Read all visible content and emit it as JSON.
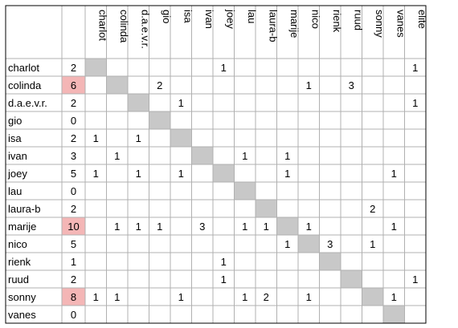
{
  "columns": [
    "charlot",
    "colinda",
    "d.a.e.v.r.",
    "gio",
    "isa",
    "ivan",
    "joey",
    "lau",
    "laura-b",
    "marije",
    "nico",
    "rienk",
    "ruud",
    "sonny",
    "vanes",
    "elite"
  ],
  "rows": [
    {
      "name": "charlot",
      "total": "2",
      "highlight": false,
      "cells": [
        "",
        "",
        "",
        "",
        "",
        "",
        "1",
        "",
        "",
        "",
        "",
        "",
        "",
        "",
        "",
        "1"
      ]
    },
    {
      "name": "colinda",
      "total": "6",
      "highlight": true,
      "cells": [
        "",
        "",
        "",
        "2",
        "",
        "",
        "",
        "",
        "",
        "",
        "1",
        "",
        "3",
        "",
        "",
        ""
      ]
    },
    {
      "name": "d.a.e.v.r.",
      "total": "2",
      "highlight": false,
      "cells": [
        "",
        "",
        "",
        "",
        "1",
        "",
        "",
        "",
        "",
        "",
        "",
        "",
        "",
        "",
        "",
        "1"
      ]
    },
    {
      "name": "gio",
      "total": "0",
      "highlight": false,
      "cells": [
        "",
        "",
        "",
        "",
        "",
        "",
        "",
        "",
        "",
        "",
        "",
        "",
        "",
        "",
        "",
        ""
      ]
    },
    {
      "name": "isa",
      "total": "2",
      "highlight": false,
      "cells": [
        "1",
        "",
        "1",
        "",
        "",
        "",
        "",
        "",
        "",
        "",
        "",
        "",
        "",
        "",
        "",
        ""
      ]
    },
    {
      "name": "ivan",
      "total": "3",
      "highlight": false,
      "cells": [
        "",
        "1",
        "",
        "",
        "",
        "",
        "",
        "1",
        "",
        "1",
        "",
        "",
        "",
        "",
        "",
        ""
      ]
    },
    {
      "name": "joey",
      "total": "5",
      "highlight": false,
      "cells": [
        "1",
        "",
        "1",
        "",
        "1",
        "",
        "",
        "",
        "",
        "1",
        "",
        "",
        "",
        "",
        "1",
        ""
      ]
    },
    {
      "name": "lau",
      "total": "0",
      "highlight": false,
      "cells": [
        "",
        "",
        "",
        "",
        "",
        "",
        "",
        "",
        "",
        "",
        "",
        "",
        "",
        "",
        "",
        ""
      ]
    },
    {
      "name": "laura-b",
      "total": "2",
      "highlight": false,
      "cells": [
        "",
        "",
        "",
        "",
        "",
        "",
        "",
        "",
        "",
        "",
        "",
        "",
        "",
        "2",
        "",
        ""
      ]
    },
    {
      "name": "marije",
      "total": "10",
      "highlight": true,
      "cells": [
        "",
        "1",
        "1",
        "1",
        "",
        "3",
        "",
        "1",
        "1",
        "",
        "1",
        "",
        "",
        "",
        "1",
        ""
      ]
    },
    {
      "name": "nico",
      "total": "5",
      "highlight": false,
      "cells": [
        "",
        "",
        "",
        "",
        "",
        "",
        "",
        "",
        "",
        "1",
        "",
        "3",
        "",
        "1",
        "",
        ""
      ]
    },
    {
      "name": "rienk",
      "total": "1",
      "highlight": false,
      "cells": [
        "",
        "",
        "",
        "",
        "",
        "",
        "1",
        "",
        "",
        "",
        "",
        "",
        "",
        "",
        "",
        ""
      ]
    },
    {
      "name": "ruud",
      "total": "2",
      "highlight": false,
      "cells": [
        "",
        "",
        "",
        "",
        "",
        "",
        "1",
        "",
        "",
        "",
        "",
        "",
        "",
        "",
        "",
        "1"
      ]
    },
    {
      "name": "sonny",
      "total": "8",
      "highlight": true,
      "cells": [
        "1",
        "1",
        "",
        "",
        "1",
        "",
        "",
        "1",
        "2",
        "",
        "1",
        "",
        "",
        "",
        "1",
        ""
      ]
    },
    {
      "name": "vanes",
      "total": "0",
      "highlight": false,
      "cells": [
        "",
        "",
        "",
        "",
        "",
        "",
        "",
        "",
        "",
        "",
        "",
        "",
        "",
        "",
        "",
        ""
      ]
    }
  ],
  "colors": {
    "grid": "#b0b0b0",
    "diagonal": "#c8c8c8",
    "highlight": "#f4b6b6",
    "border": "#000000"
  }
}
